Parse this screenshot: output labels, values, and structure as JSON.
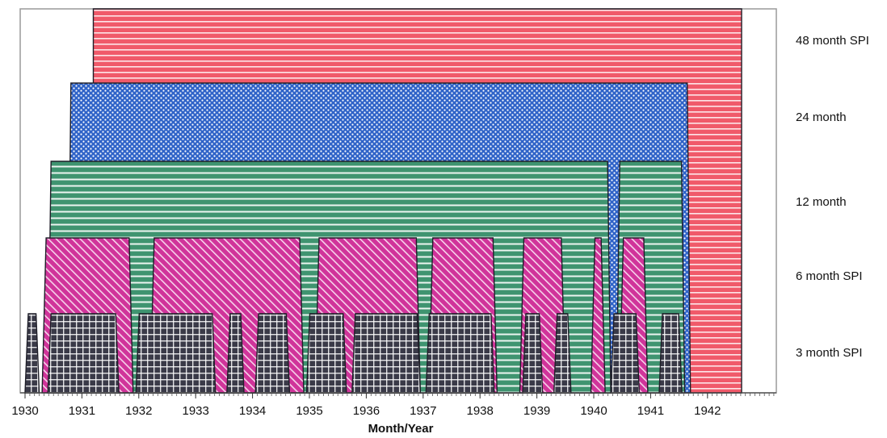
{
  "chart_data": {
    "type": "area",
    "xlabel": "Month/Year",
    "ylabel": "",
    "xlim": [
      1930.0,
      1943.0
    ],
    "ticks": [
      1930,
      1931,
      1932,
      1933,
      1934,
      1935,
      1936,
      1937,
      1938,
      1939,
      1940,
      1941,
      1942
    ],
    "tick_labels": [
      "1930",
      "1931",
      "1932",
      "1933",
      "1934",
      "1935",
      "1936",
      "1937",
      "1938",
      "1939",
      "1940",
      "1941",
      "1942"
    ],
    "grid": false,
    "series": [
      {
        "name": "48 month SPI",
        "color": "#f05a6a",
        "pattern": "horizontal-lines",
        "periods": [
          [
            1931.2,
            1942.6
          ]
        ]
      },
      {
        "name": "24 month",
        "color": "#2f63c8",
        "pattern": "dots",
        "periods": [
          [
            1930.75,
            1941.7
          ]
        ]
      },
      {
        "name": "12 month",
        "color": "#3f9470",
        "pattern": "horizontal-lines",
        "periods": [
          [
            1930.4,
            1940.3
          ],
          [
            1940.4,
            1941.6
          ]
        ]
      },
      {
        "name": "6 month SPI",
        "color": "#d0349a",
        "pattern": "diagonal-lines",
        "periods": [
          [
            1930.3,
            1931.9
          ],
          [
            1932.2,
            1934.9
          ],
          [
            1935.1,
            1936.95
          ],
          [
            1937.1,
            1938.3
          ],
          [
            1938.7,
            1939.5
          ],
          [
            1939.95,
            1940.2
          ],
          [
            1940.45,
            1940.95
          ]
        ]
      },
      {
        "name": "3 month SPI",
        "color": "#3a3a48",
        "pattern": "grid",
        "periods": [
          [
            1930.0,
            1930.25
          ],
          [
            1930.4,
            1931.65
          ],
          [
            1931.95,
            1933.35
          ],
          [
            1933.55,
            1933.85
          ],
          [
            1934.05,
            1934.65
          ],
          [
            1934.95,
            1935.65
          ],
          [
            1935.75,
            1936.95
          ],
          [
            1937.05,
            1938.25
          ],
          [
            1938.75,
            1939.1
          ],
          [
            1939.3,
            1939.6
          ],
          [
            1940.3,
            1940.8
          ],
          [
            1941.15,
            1941.55
          ]
        ]
      }
    ]
  }
}
